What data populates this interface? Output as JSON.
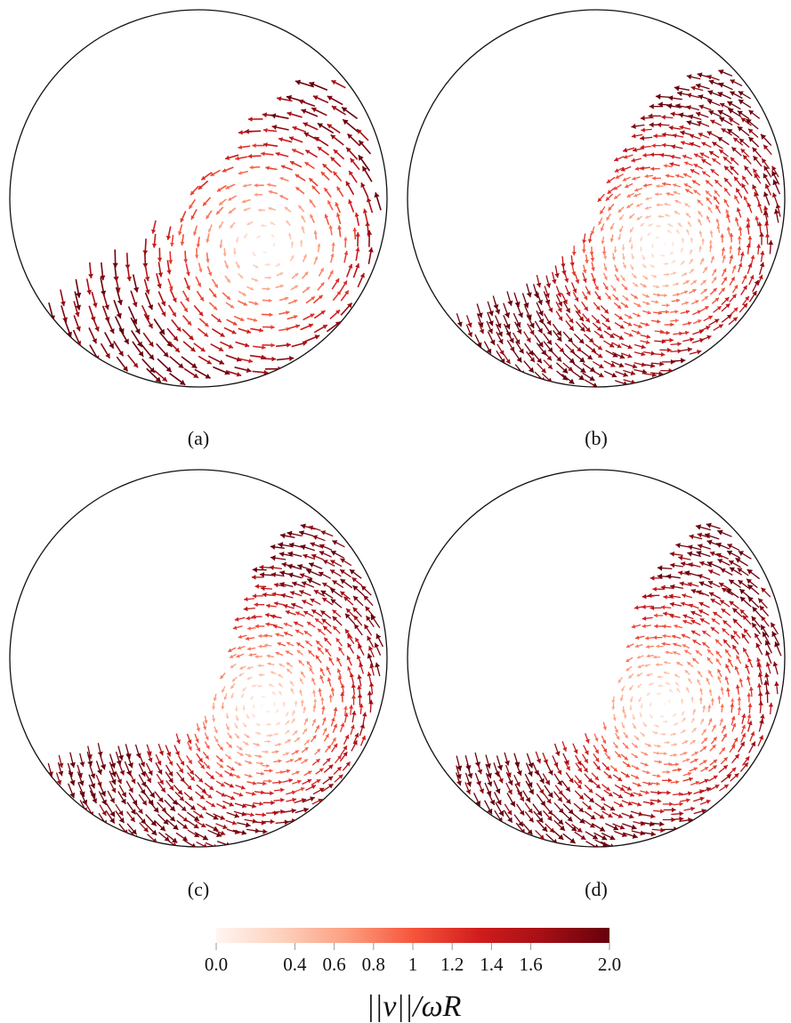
{
  "panels": [
    {
      "id": "a",
      "label": "(a)",
      "fill_level": 0.32,
      "max_speed": 1.9
    },
    {
      "id": "b",
      "label": "(b)",
      "fill_level": 0.42,
      "max_speed": 2.0
    },
    {
      "id": "c",
      "label": "(c)",
      "fill_level": 0.48,
      "max_speed": 2.0
    },
    {
      "id": "d",
      "label": "(d)",
      "fill_level": 0.48,
      "max_speed": 2.0
    }
  ],
  "colorbar": {
    "title": "||v||/ωR",
    "min": 0.0,
    "max": 2.0,
    "ticks": [
      {
        "value": 0.0,
        "label": "0.0"
      },
      {
        "value": 0.4,
        "label": "0.4"
      },
      {
        "value": 0.6,
        "label": "0.6"
      },
      {
        "value": 0.8,
        "label": "0.8"
      },
      {
        "value": 1.0,
        "label": "1"
      },
      {
        "value": 1.2,
        "label": "1.2"
      },
      {
        "value": 1.4,
        "label": "1.4"
      },
      {
        "value": 1.6,
        "label": "1.6"
      },
      {
        "value": 2.0,
        "label": "2.0"
      }
    ],
    "colors": [
      "#fff5f0",
      "#fdd0bc",
      "#fc9f81",
      "#f6553c",
      "#d01c1d",
      "#a50f15",
      "#67000d"
    ]
  }
}
